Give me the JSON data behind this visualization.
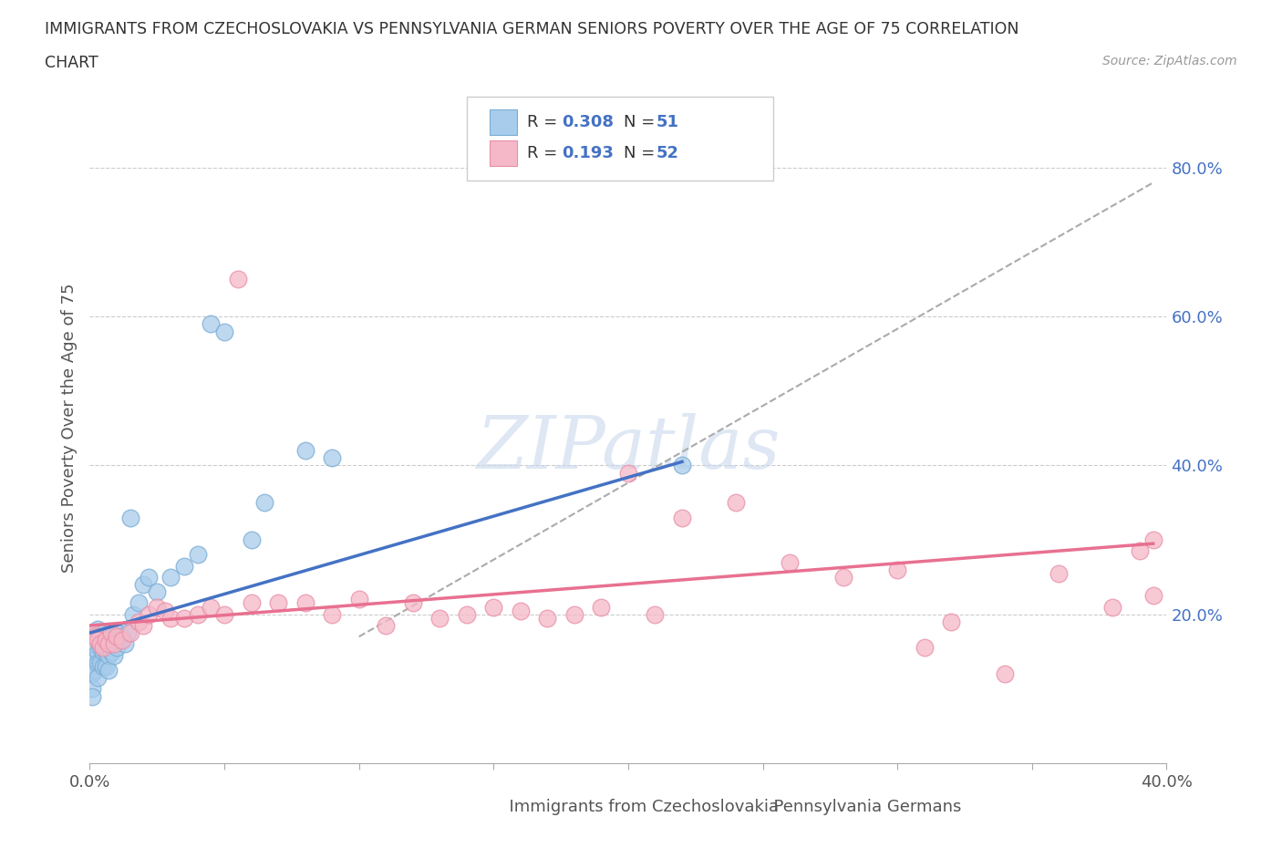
{
  "title_line1": "IMMIGRANTS FROM CZECHOSLOVAKIA VS PENNSYLVANIA GERMAN SENIORS POVERTY OVER THE AGE OF 75 CORRELATION",
  "title_line2": "CHART",
  "source": "Source: ZipAtlas.com",
  "ylabel": "Seniors Poverty Over the Age of 75",
  "xlim": [
    0.0,
    0.4
  ],
  "ylim": [
    0.0,
    0.9
  ],
  "yticks_right": [
    0.2,
    0.4,
    0.6,
    0.8
  ],
  "ytick_labels_right": [
    "20.0%",
    "40.0%",
    "60.0%",
    "80.0%"
  ],
  "xtick_positions": [
    0.0,
    0.05,
    0.1,
    0.15,
    0.2,
    0.25,
    0.3,
    0.35,
    0.4
  ],
  "xtick_labels": [
    "0.0%",
    "",
    "",
    "",
    "",
    "",
    "",
    "",
    "40.0%"
  ],
  "blue_color": "#A8CCEC",
  "blue_edge": "#7AADD4",
  "pink_color": "#F5B8C8",
  "pink_edge": "#E890A8",
  "blue_line_color": "#4472C4",
  "pink_line_color": "#E87090",
  "dash_color": "#AAAAAA",
  "watermark": "ZIPatlas",
  "background_color": "#FFFFFF",
  "blue_x": [
    0.001,
    0.001,
    0.001,
    0.001,
    0.002,
    0.002,
    0.002,
    0.002,
    0.003,
    0.003,
    0.003,
    0.003,
    0.003,
    0.004,
    0.004,
    0.004,
    0.005,
    0.005,
    0.005,
    0.006,
    0.006,
    0.006,
    0.007,
    0.007,
    0.007,
    0.008,
    0.008,
    0.009,
    0.009,
    0.01,
    0.01,
    0.011,
    0.012,
    0.013,
    0.014,
    0.015,
    0.016,
    0.018,
    0.02,
    0.022,
    0.025,
    0.03,
    0.035,
    0.04,
    0.045,
    0.05,
    0.06,
    0.065,
    0.08,
    0.09,
    0.22
  ],
  "blue_y": [
    0.13,
    0.12,
    0.1,
    0.09,
    0.17,
    0.155,
    0.14,
    0.125,
    0.18,
    0.165,
    0.15,
    0.135,
    0.115,
    0.175,
    0.155,
    0.135,
    0.17,
    0.15,
    0.13,
    0.165,
    0.15,
    0.13,
    0.16,
    0.145,
    0.125,
    0.17,
    0.15,
    0.165,
    0.145,
    0.175,
    0.155,
    0.165,
    0.17,
    0.16,
    0.175,
    0.33,
    0.2,
    0.215,
    0.24,
    0.25,
    0.23,
    0.25,
    0.265,
    0.28,
    0.59,
    0.58,
    0.3,
    0.35,
    0.42,
    0.41,
    0.4
  ],
  "pink_x": [
    0.001,
    0.002,
    0.003,
    0.004,
    0.005,
    0.006,
    0.007,
    0.008,
    0.009,
    0.01,
    0.012,
    0.015,
    0.018,
    0.02,
    0.022,
    0.025,
    0.028,
    0.03,
    0.035,
    0.04,
    0.045,
    0.05,
    0.055,
    0.06,
    0.07,
    0.08,
    0.09,
    0.1,
    0.11,
    0.12,
    0.13,
    0.14,
    0.15,
    0.16,
    0.17,
    0.18,
    0.19,
    0.2,
    0.21,
    0.22,
    0.24,
    0.26,
    0.28,
    0.3,
    0.31,
    0.32,
    0.34,
    0.36,
    0.38,
    0.39,
    0.395,
    0.395
  ],
  "pink_y": [
    0.175,
    0.17,
    0.165,
    0.16,
    0.155,
    0.165,
    0.16,
    0.175,
    0.16,
    0.17,
    0.165,
    0.175,
    0.19,
    0.185,
    0.2,
    0.21,
    0.205,
    0.195,
    0.195,
    0.2,
    0.21,
    0.2,
    0.65,
    0.215,
    0.215,
    0.215,
    0.2,
    0.22,
    0.185,
    0.215,
    0.195,
    0.2,
    0.21,
    0.205,
    0.195,
    0.2,
    0.21,
    0.39,
    0.2,
    0.33,
    0.35,
    0.27,
    0.25,
    0.26,
    0.155,
    0.19,
    0.12,
    0.255,
    0.21,
    0.285,
    0.3,
    0.225
  ]
}
